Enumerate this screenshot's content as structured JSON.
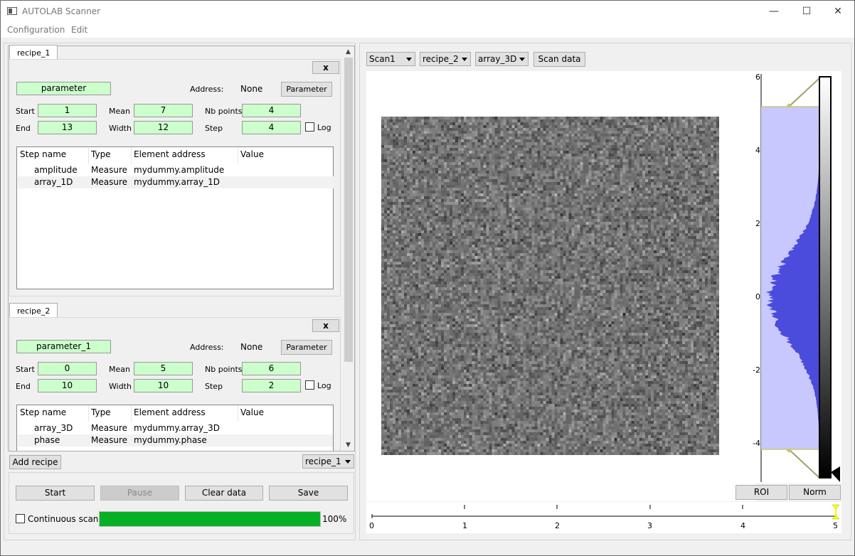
{
  "window": {
    "title": "AUTOLAB Scanner"
  },
  "menu": [
    "Configuration",
    "Edit"
  ],
  "recipes": [
    {
      "tab": "recipe_1",
      "close_label": "x",
      "parameter_name": "parameter",
      "address_label": "Address:",
      "address_value": "None",
      "parameter_button": "Parameter",
      "start_label": "Start",
      "start": "1",
      "end_label": "End",
      "end": "13",
      "mean_label": "Mean",
      "mean": "7",
      "width_label": "Width",
      "width": "12",
      "nbpoints_label": "Nb points",
      "nbpoints": "4",
      "step_label": "Step",
      "step": "4",
      "log_label": "Log",
      "columns": [
        "Step name",
        "Type",
        "Element address",
        "Value"
      ],
      "rows": [
        [
          "amplitude",
          "Measure",
          "mydummy.amplitude",
          ""
        ],
        [
          "array_1D",
          "Measure",
          "mydummy.array_1D",
          ""
        ]
      ]
    },
    {
      "tab": "recipe_2",
      "close_label": "x",
      "parameter_name": "parameter_1",
      "address_label": "Address:",
      "address_value": "None",
      "parameter_button": "Parameter",
      "start_label": "Start",
      "start": "0",
      "end_label": "End",
      "end": "10",
      "mean_label": "Mean",
      "mean": "5",
      "width_label": "Width",
      "width": "10",
      "nbpoints_label": "Nb points",
      "nbpoints": "6",
      "step_label": "Step",
      "step": "2",
      "log_label": "Log",
      "columns": [
        "Step name",
        "Type",
        "Element address",
        "Value"
      ],
      "rows": [
        [
          "array_3D",
          "Measure",
          "mydummy.array_3D",
          ""
        ],
        [
          "phase",
          "Measure",
          "mydummy.phase",
          ""
        ]
      ]
    }
  ],
  "bottom": {
    "add_recipe": "Add recipe",
    "recipe_select": "recipe_1",
    "start": "Start",
    "pause": "Pause",
    "clear": "Clear data",
    "save": "Save",
    "continuous": "Continuous scan",
    "progress": 100,
    "progress_text": "100%"
  },
  "plot": {
    "scan_select": "Scan1",
    "recipe_select": "recipe_2",
    "data_select": "array_3D",
    "scan_data_button": "Scan data",
    "roi_button": "ROI",
    "norm_button": "Norm",
    "histogram_axis_ticks": [
      "6",
      "4",
      "2",
      "0",
      "-2",
      "-4"
    ],
    "timeline_ticks": [
      "0",
      "1",
      "2",
      "3",
      "4",
      "5"
    ],
    "colors": {
      "progress": "#06b025",
      "histogram": "#4b4bdc",
      "histogram_bg": "#c8c8ff",
      "slider": "#ffff00"
    }
  }
}
